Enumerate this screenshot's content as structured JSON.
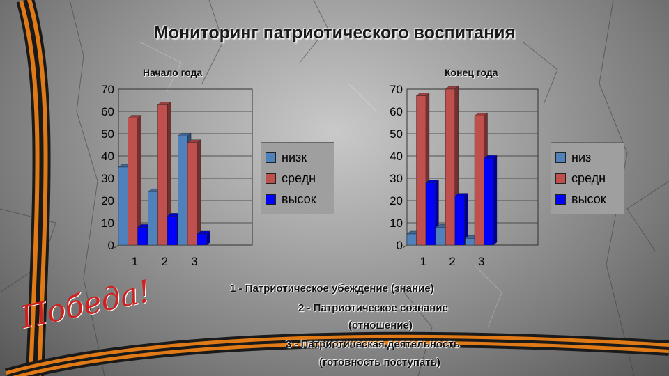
{
  "slide": {
    "title": "Мониторинг патриотического воспитания",
    "logo_text": "Победа!",
    "captions": [
      "1 - Патриотическое убеждение (знание)",
      "2 - Патриотическое сознание",
      "(отношение)",
      "3 - Патриотическая деятельность",
      "(готовность поступать)"
    ]
  },
  "chart_data": [
    {
      "type": "bar",
      "title": "Начало года",
      "categories": [
        "1",
        "2",
        "3"
      ],
      "ylim": [
        0,
        70
      ],
      "yticks": [
        "0",
        "10",
        "20",
        "30",
        "40",
        "50",
        "60",
        "70"
      ],
      "grid": true,
      "legend_position": "right",
      "series": [
        {
          "name": "низк",
          "values": [
            35,
            24,
            49
          ],
          "color": "#4f81bd"
        },
        {
          "name": "средн",
          "values": [
            57,
            63,
            46
          ],
          "color": "#c0504d"
        },
        {
          "name": "высок",
          "values": [
            8,
            13,
            5
          ],
          "color": "#0000ff"
        }
      ]
    },
    {
      "type": "bar",
      "title": "Конец года",
      "categories": [
        "1",
        "2",
        "3"
      ],
      "ylim": [
        0,
        70
      ],
      "yticks": [
        "0",
        "10",
        "20",
        "30",
        "40",
        "50",
        "60",
        "70"
      ],
      "grid": true,
      "legend_position": "right",
      "series": [
        {
          "name": "низ",
          "values": [
            5,
            8,
            3
          ],
          "color": "#4f81bd"
        },
        {
          "name": "средн",
          "values": [
            67,
            70,
            58
          ],
          "color": "#c0504d"
        },
        {
          "name": "высок",
          "values": [
            28,
            22,
            39
          ],
          "color": "#0000ff"
        }
      ]
    }
  ]
}
